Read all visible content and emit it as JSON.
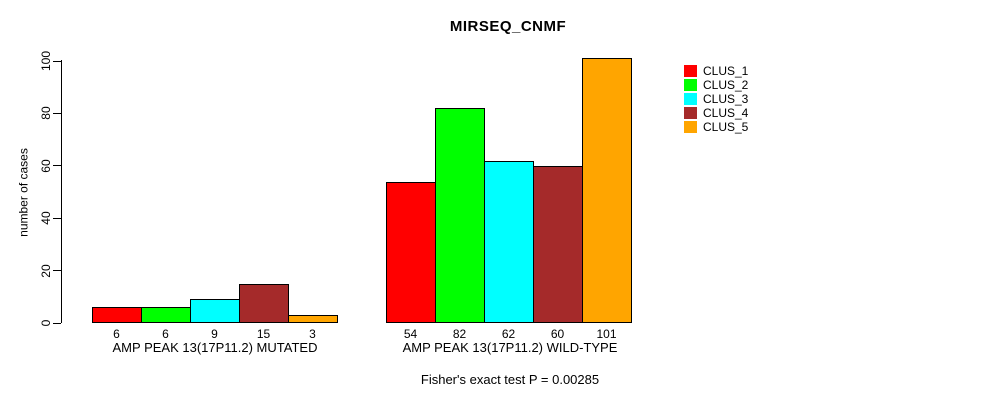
{
  "chart_data": {
    "type": "bar",
    "title": "MIRSEQ_CNMF",
    "ylabel": "number of cases",
    "ylim": [
      0,
      100
    ],
    "yticks": [
      0,
      20,
      40,
      60,
      80,
      100
    ],
    "grid": false,
    "legend_position": "right",
    "categories": [
      "AMP PEAK 13(17P11.2) MUTATED",
      "AMP PEAK 13(17P11.2) WILD-TYPE"
    ],
    "series": [
      {
        "name": "CLUS_1",
        "color": "#FF0000",
        "values": [
          6,
          54
        ]
      },
      {
        "name": "CLUS_2",
        "color": "#00FF00",
        "values": [
          6,
          82
        ]
      },
      {
        "name": "CLUS_3",
        "color": "#00FFFF",
        "values": [
          9,
          62
        ]
      },
      {
        "name": "CLUS_4",
        "color": "#A52A2A",
        "values": [
          15,
          60
        ]
      },
      {
        "name": "CLUS_5",
        "color": "#FFA500",
        "values": [
          3,
          101
        ]
      }
    ],
    "bar_value_labels": [
      [
        6,
        6,
        9,
        15,
        3
      ],
      [
        54,
        82,
        62,
        60,
        101
      ]
    ],
    "footnote": "Fisher's exact test P = 0.00285",
    "colors": {
      "axis": "#000000",
      "background": "#FFFFFF"
    }
  }
}
